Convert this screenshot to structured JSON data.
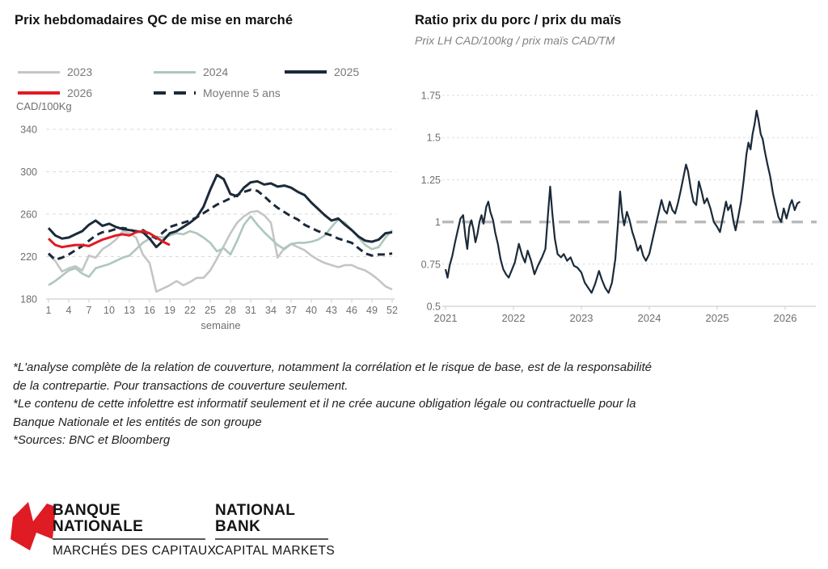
{
  "disclaimer_lines": [
    "*L'analyse complète de la relation de couverture, notamment la corrélation et le risque de base, est de la responsabilité",
    "de la contrepartie. Pour transactions de couverture seulement.",
    "*Le contenu de cette infolettre est informatif seulement et il ne crée aucune obligation légale ou contractuelle pour la",
    "Banque Nationale et les entités de son groupe",
    "*Sources: BNC et Bloomberg"
  ],
  "logo": {
    "fr_line1": "BANQUE",
    "fr_line2": "NATIONALE",
    "fr_sub": "MARCHÉS DES CAPITAUX",
    "en_line1": "NATIONAL",
    "en_line2": "BANK",
    "en_sub": "CAPITAL MARKETS",
    "flag_color": "#df1b24"
  },
  "chart_data": [
    {
      "type": "line",
      "title": "Prix hebdomadaires QC de mise en marché",
      "ylabel": "CAD/100Kg",
      "xlabel": "semaine",
      "ylim": [
        180,
        340
      ],
      "yticks": [
        340,
        300,
        260,
        220,
        180
      ],
      "xticks": [
        1,
        4,
        7,
        10,
        13,
        16,
        19,
        22,
        25,
        28,
        31,
        34,
        37,
        40,
        43,
        46,
        49,
        52
      ],
      "grid": "dashed-horizontal",
      "legend_position": "top-left",
      "tick_color": "#6d6f71",
      "series": [
        {
          "name": "2023",
          "color": "#c3c5c7",
          "dash": null,
          "width": 2.6,
          "values": [
            222,
            216,
            206,
            209,
            211,
            207,
            221,
            219,
            227,
            231,
            236,
            244,
            242,
            238,
            222,
            214,
            187,
            190,
            193,
            197,
            193,
            196,
            200,
            200,
            207,
            218,
            230,
            242,
            252,
            258,
            262,
            263,
            259,
            252,
            219,
            228,
            232,
            229,
            226,
            221,
            217,
            214,
            212,
            210,
            212,
            212,
            209,
            207,
            203,
            198,
            192,
            189
          ]
        },
        {
          "name": "2024",
          "color": "#adc7bb",
          "dash": null,
          "width": 2.6,
          "values": [
            193,
            197,
            202,
            207,
            209,
            204,
            201,
            209,
            211,
            213,
            216,
            219,
            221,
            227,
            233,
            237,
            239,
            238,
            240,
            242,
            241,
            244,
            242,
            238,
            233,
            225,
            228,
            222,
            235,
            250,
            258,
            250,
            243,
            237,
            231,
            227,
            232,
            233,
            233,
            234,
            236,
            240,
            248,
            255,
            252,
            245,
            238,
            231,
            227,
            229,
            238,
            245
          ]
        },
        {
          "name": "2025",
          "color": "#1b2a39",
          "dash": null,
          "width": 3,
          "values": [
            247,
            240,
            237,
            238,
            241,
            244,
            250,
            254,
            249,
            251,
            248,
            246,
            245,
            244,
            243,
            237,
            229,
            235,
            242,
            244,
            248,
            252,
            257,
            267,
            283,
            297,
            293,
            279,
            277,
            285,
            290,
            291,
            288,
            289,
            286,
            287,
            285,
            281,
            278,
            271,
            265,
            259,
            254,
            256,
            250,
            245,
            239,
            235,
            234,
            236,
            242,
            243
          ]
        },
        {
          "name": "2026",
          "color": "#e11b23",
          "dash": null,
          "width": 3,
          "values": [
            237,
            231,
            229,
            230,
            231,
            231,
            230,
            233,
            236,
            238,
            240,
            241,
            240,
            243,
            244,
            242,
            238,
            234,
            231
          ]
        },
        {
          "name": "Moyenne 5 ans",
          "color": "#1b2a39",
          "dash": "9 5.5",
          "width": 3,
          "values": [
            223,
            217,
            219,
            222,
            226,
            230,
            235,
            240,
            243,
            244,
            246,
            247,
            246,
            243,
            245,
            241,
            237,
            243,
            248,
            250,
            252,
            254,
            257,
            261,
            265,
            269,
            272,
            275,
            278,
            281,
            283,
            282,
            277,
            271,
            266,
            262,
            258,
            255,
            250,
            247,
            244,
            242,
            240,
            237,
            235,
            233,
            228,
            223,
            221,
            222,
            222,
            223
          ]
        }
      ]
    },
    {
      "type": "line",
      "title": "Ratio prix du porc / prix du maïs",
      "subtitle": "Prix LH CAD/100kg / prix maïs CAD/TM",
      "ylim": [
        0.5,
        1.75
      ],
      "xlim": [
        2020.95,
        2026.45
      ],
      "yticks": [
        1.75,
        1.5,
        1.25,
        1,
        0.75,
        0.5
      ],
      "ytick_labels": [
        "1.75",
        "1.5",
        "1.25",
        "1",
        "0.75",
        "0.5"
      ],
      "xticks": [
        2021,
        2022,
        2023,
        2024,
        2025,
        2026
      ],
      "emphasized_gridline": 1,
      "grid": "dotted-horizontal",
      "tick_color": "#6d6f71",
      "series": [
        {
          "name": "ratio porc/maïs",
          "color": "#1b2a39",
          "width": 2.2,
          "points": [
            [
              2021.0,
              0.72
            ],
            [
              2021.03,
              0.67
            ],
            [
              2021.06,
              0.74
            ],
            [
              2021.1,
              0.8
            ],
            [
              2021.14,
              0.88
            ],
            [
              2021.18,
              0.95
            ],
            [
              2021.22,
              1.02
            ],
            [
              2021.26,
              1.04
            ],
            [
              2021.29,
              0.92
            ],
            [
              2021.32,
              0.84
            ],
            [
              2021.35,
              0.97
            ],
            [
              2021.38,
              1.01
            ],
            [
              2021.41,
              0.96
            ],
            [
              2021.44,
              0.88
            ],
            [
              2021.47,
              0.93
            ],
            [
              2021.5,
              1.0
            ],
            [
              2021.53,
              1.04
            ],
            [
              2021.56,
              0.99
            ],
            [
              2021.6,
              1.09
            ],
            [
              2021.63,
              1.12
            ],
            [
              2021.66,
              1.06
            ],
            [
              2021.7,
              1.01
            ],
            [
              2021.73,
              0.94
            ],
            [
              2021.77,
              0.87
            ],
            [
              2021.81,
              0.78
            ],
            [
              2021.85,
              0.72
            ],
            [
              2021.89,
              0.69
            ],
            [
              2021.93,
              0.67
            ],
            [
              2021.97,
              0.71
            ],
            [
              2022.02,
              0.76
            ],
            [
              2022.08,
              0.87
            ],
            [
              2022.13,
              0.8
            ],
            [
              2022.17,
              0.76
            ],
            [
              2022.21,
              0.83
            ],
            [
              2022.26,
              0.77
            ],
            [
              2022.31,
              0.69
            ],
            [
              2022.36,
              0.74
            ],
            [
              2022.42,
              0.79
            ],
            [
              2022.47,
              0.84
            ],
            [
              2022.51,
              1.05
            ],
            [
              2022.54,
              1.21
            ],
            [
              2022.57,
              1.06
            ],
            [
              2022.61,
              0.9
            ],
            [
              2022.65,
              0.81
            ],
            [
              2022.7,
              0.79
            ],
            [
              2022.74,
              0.81
            ],
            [
              2022.79,
              0.77
            ],
            [
              2022.84,
              0.79
            ],
            [
              2022.89,
              0.74
            ],
            [
              2022.94,
              0.73
            ],
            [
              2023.0,
              0.7
            ],
            [
              2023.05,
              0.64
            ],
            [
              2023.1,
              0.61
            ],
            [
              2023.15,
              0.58
            ],
            [
              2023.2,
              0.63
            ],
            [
              2023.26,
              0.71
            ],
            [
              2023.3,
              0.66
            ],
            [
              2023.35,
              0.61
            ],
            [
              2023.4,
              0.58
            ],
            [
              2023.45,
              0.64
            ],
            [
              2023.5,
              0.78
            ],
            [
              2023.54,
              1.0
            ],
            [
              2023.57,
              1.18
            ],
            [
              2023.6,
              1.05
            ],
            [
              2023.63,
              0.98
            ],
            [
              2023.67,
              1.06
            ],
            [
              2023.71,
              1.01
            ],
            [
              2023.75,
              0.94
            ],
            [
              2023.79,
              0.89
            ],
            [
              2023.83,
              0.83
            ],
            [
              2023.87,
              0.86
            ],
            [
              2023.91,
              0.8
            ],
            [
              2023.95,
              0.77
            ],
            [
              2024.0,
              0.81
            ],
            [
              2024.05,
              0.9
            ],
            [
              2024.1,
              0.99
            ],
            [
              2024.14,
              1.06
            ],
            [
              2024.18,
              1.13
            ],
            [
              2024.22,
              1.07
            ],
            [
              2024.26,
              1.05
            ],
            [
              2024.3,
              1.12
            ],
            [
              2024.34,
              1.07
            ],
            [
              2024.38,
              1.05
            ],
            [
              2024.42,
              1.11
            ],
            [
              2024.46,
              1.18
            ],
            [
              2024.5,
              1.26
            ],
            [
              2024.54,
              1.34
            ],
            [
              2024.57,
              1.3
            ],
            [
              2024.61,
              1.2
            ],
            [
              2024.65,
              1.12
            ],
            [
              2024.69,
              1.1
            ],
            [
              2024.73,
              1.24
            ],
            [
              2024.77,
              1.18
            ],
            [
              2024.81,
              1.11
            ],
            [
              2024.85,
              1.14
            ],
            [
              2024.9,
              1.08
            ],
            [
              2024.95,
              1.0
            ],
            [
              2025.0,
              0.97
            ],
            [
              2025.04,
              0.94
            ],
            [
              2025.09,
              1.04
            ],
            [
              2025.13,
              1.12
            ],
            [
              2025.16,
              1.07
            ],
            [
              2025.2,
              1.1
            ],
            [
              2025.24,
              1.0
            ],
            [
              2025.27,
              0.95
            ],
            [
              2025.31,
              1.03
            ],
            [
              2025.35,
              1.12
            ],
            [
              2025.39,
              1.25
            ],
            [
              2025.43,
              1.4
            ],
            [
              2025.46,
              1.47
            ],
            [
              2025.49,
              1.43
            ],
            [
              2025.52,
              1.52
            ],
            [
              2025.55,
              1.58
            ],
            [
              2025.58,
              1.66
            ],
            [
              2025.61,
              1.6
            ],
            [
              2025.64,
              1.52
            ],
            [
              2025.67,
              1.49
            ],
            [
              2025.7,
              1.42
            ],
            [
              2025.74,
              1.34
            ],
            [
              2025.78,
              1.27
            ],
            [
              2025.82,
              1.17
            ],
            [
              2025.86,
              1.1
            ],
            [
              2025.9,
              1.03
            ],
            [
              2025.94,
              1.0
            ],
            [
              2025.98,
              1.08
            ],
            [
              2026.02,
              1.02
            ],
            [
              2026.07,
              1.1
            ],
            [
              2026.1,
              1.13
            ],
            [
              2026.14,
              1.07
            ],
            [
              2026.18,
              1.11
            ],
            [
              2026.22,
              1.12
            ]
          ]
        }
      ]
    }
  ]
}
